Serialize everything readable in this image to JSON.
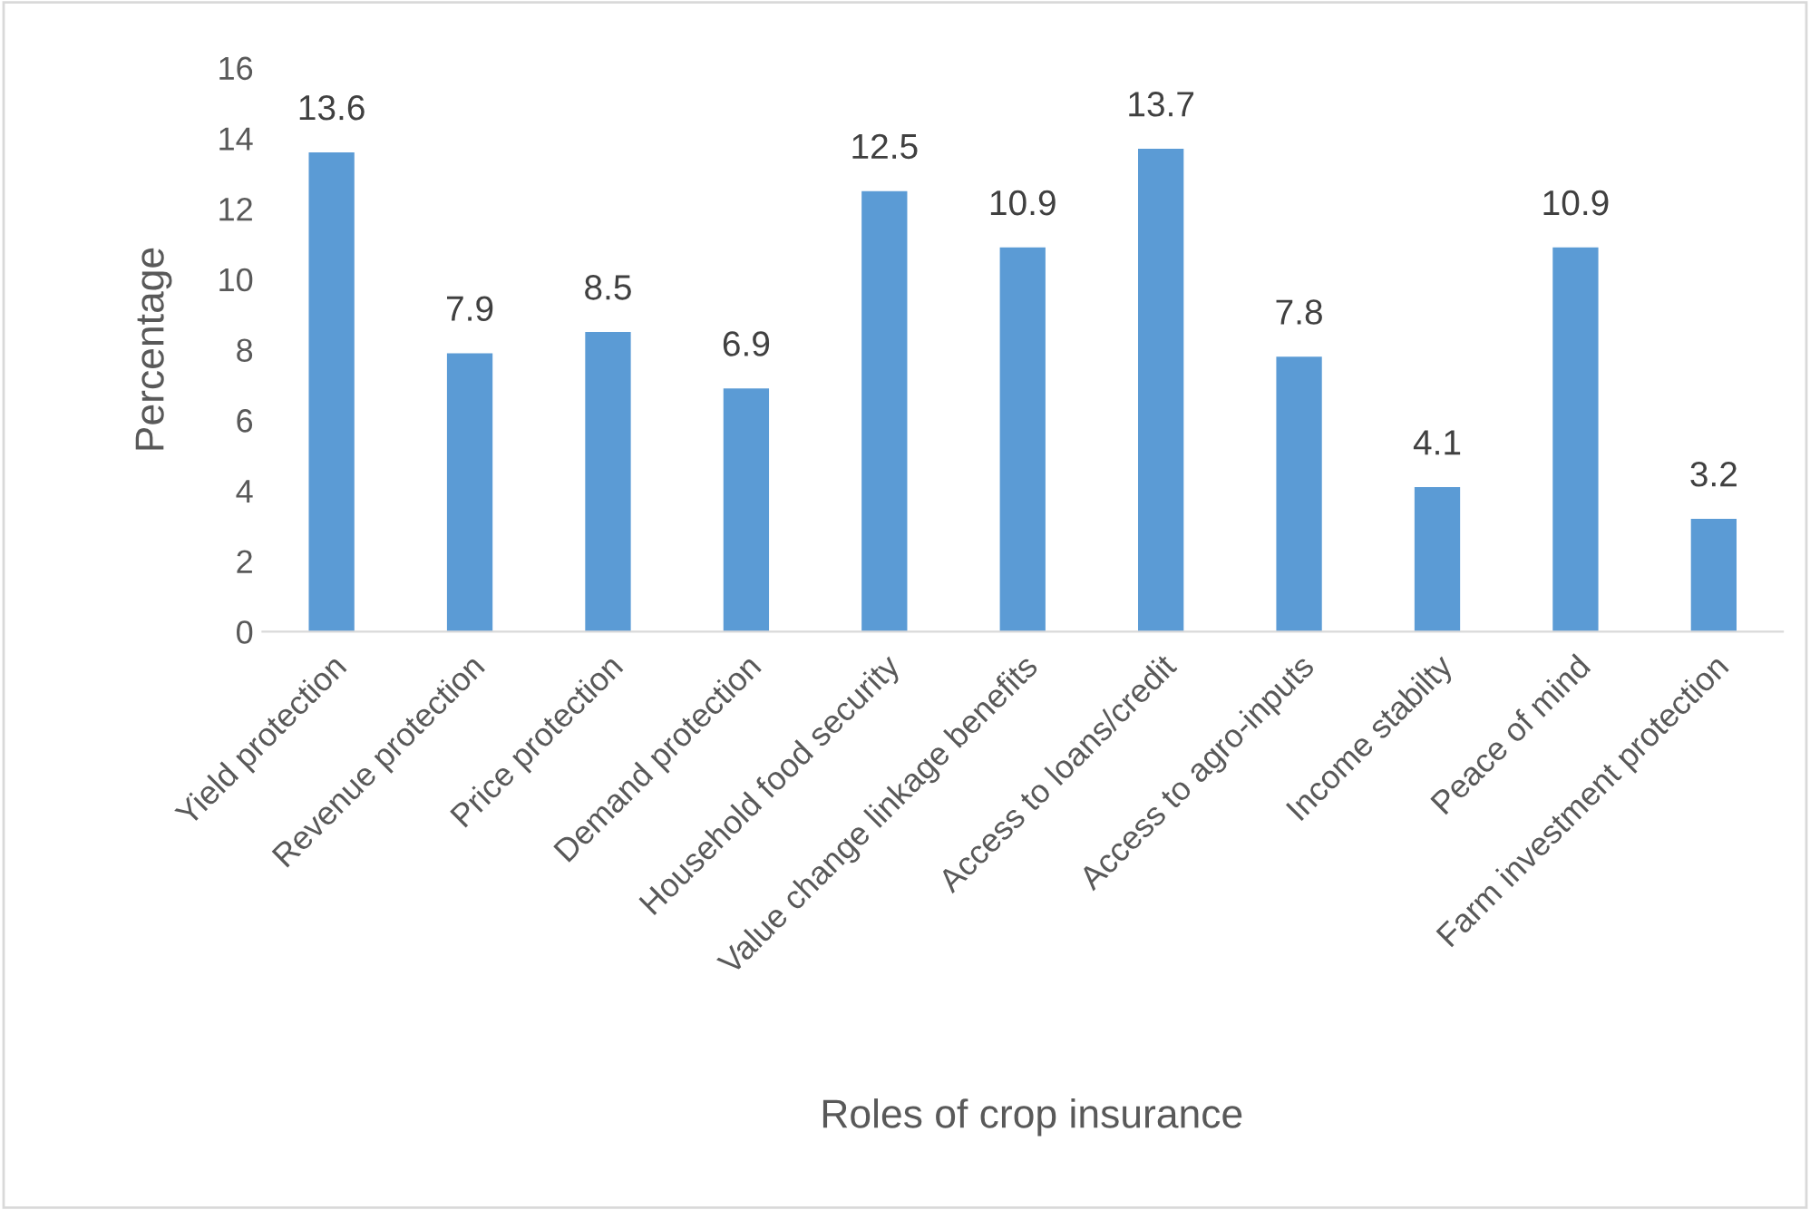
{
  "chart_data": {
    "type": "bar",
    "xlabel": "Roles of crop insurance",
    "ylabel": "Percentage",
    "categories": [
      "Yield protection",
      "Revenue protection",
      "Price protection",
      "Demand protection",
      "Household food security",
      "Value change linkage benefits",
      "Access to loans/credit",
      "Access to agro-inputs",
      "Income stabilty",
      "Peace of mind",
      "Farm investment protection"
    ],
    "values": [
      13.6,
      7.9,
      8.5,
      6.9,
      12.5,
      10.9,
      13.7,
      7.8,
      4.1,
      10.9,
      3.2
    ],
    "color": "#5b9bd5",
    "ylim": [
      0,
      16
    ],
    "yticks": [
      0,
      2,
      4,
      6,
      8,
      10,
      12,
      14,
      16
    ],
    "data_labels": true,
    "grid": false,
    "legend": false
  }
}
